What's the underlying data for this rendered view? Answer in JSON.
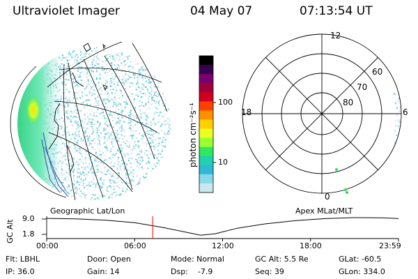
{
  "header": {
    "title": "Ultraviolet Imager",
    "date": "04 May 07",
    "time": "07:13:54 UT"
  },
  "colorbar": {
    "unit_label": "photon cm⁻²s⁻¹",
    "ticks": [
      "100",
      "10"
    ],
    "colors": [
      "#000000",
      "#3a0050",
      "#7a0070",
      "#a0003a",
      "#d0001e",
      "#ff4000",
      "#ff9000",
      "#ffd000",
      "#e8ff20",
      "#98ff30",
      "#30e860",
      "#20d0b0",
      "#30b8d8",
      "#88d8e8",
      "#c8e8f0"
    ]
  },
  "geo_map": {
    "caption": "Geographic Lat/Lon",
    "landmass_color": "#2040a0",
    "coastline_color": "#000000"
  },
  "polar_map": {
    "caption": "Apex MLat/MLT",
    "mlt_labels": {
      "top": "12",
      "right": "6",
      "bottom": "0",
      "left": "18"
    },
    "lat_labels": [
      "60",
      "70",
      "80"
    ]
  },
  "altitude_plot": {
    "ylabel": "GC Alt",
    "yticks": [
      "9.0",
      "1.8"
    ],
    "xticks": [
      "00:00",
      "06:00",
      "12:00",
      "18:00",
      "23:59"
    ],
    "marker_color": "#ff0000",
    "chart_data": {
      "type": "line",
      "x_hours": [
        0,
        2,
        4,
        6,
        8,
        9.5,
        10.5,
        11.5,
        13,
        15,
        17,
        19,
        21,
        23,
        24
      ],
      "y_re": [
        8.7,
        8.5,
        8.0,
        7.0,
        5.0,
        3.2,
        2.0,
        2.6,
        4.8,
        6.6,
        7.8,
        8.6,
        9.0,
        8.9,
        8.6
      ],
      "ylim": [
        1.8,
        9.0
      ],
      "xlim": [
        0,
        24
      ],
      "current_time_hours": 7.23
    }
  },
  "status": {
    "flt": "Flt: LBHL",
    "ip": "IP: 36.0",
    "door": "Door: Open",
    "gain": "Gain: 14",
    "mode": "Mode: Normal",
    "dsp": "Dsp:    -7.9",
    "gc_alt": "GC Alt: 5.5 Re",
    "seq": "Seq: 39",
    "glat": "GLat: -60.5",
    "glon": "GLon: 334.0"
  }
}
